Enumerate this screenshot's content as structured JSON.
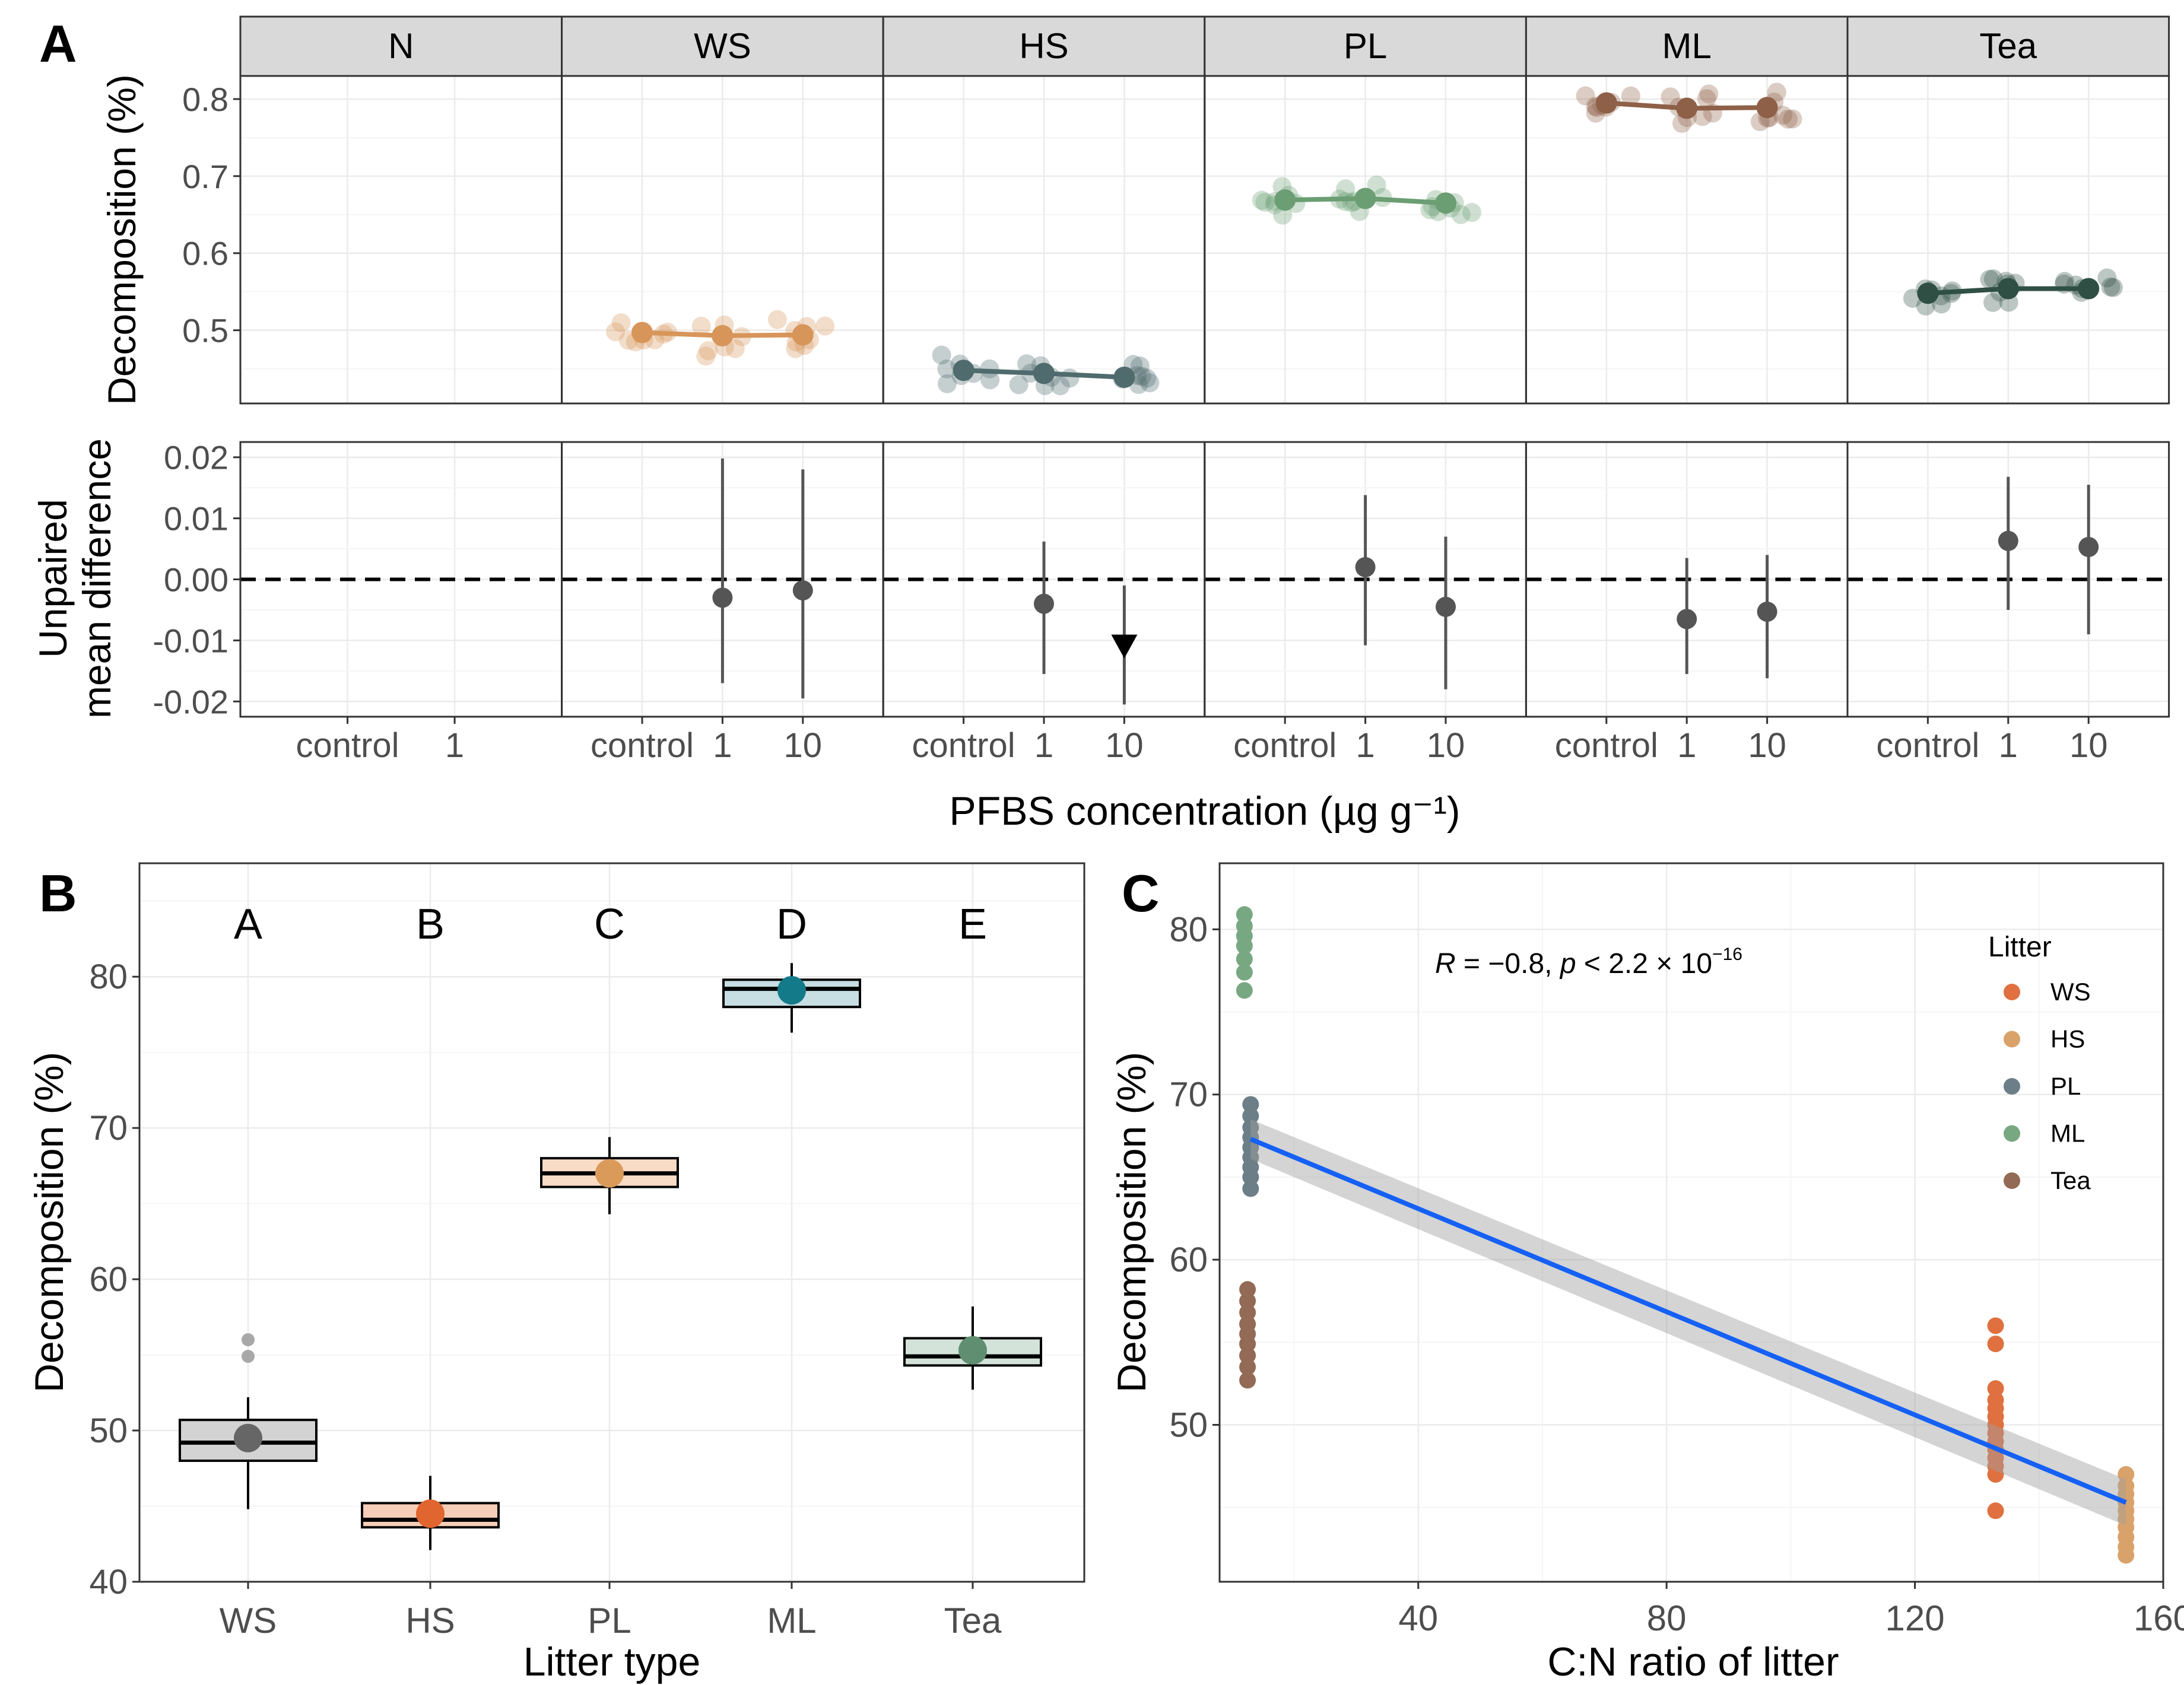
{
  "figure": {
    "panel_labels": [
      "A",
      "B",
      "C"
    ]
  },
  "chart_data": [
    {
      "id": "A-top",
      "type": "line",
      "ylabel": "Decomposition (%)",
      "ylim": [
        0.405,
        0.83
      ],
      "yticks": [
        0.5,
        0.6,
        0.7,
        0.8
      ],
      "ytick_labels": [
        "0.5",
        "0.6",
        "0.7",
        "0.8"
      ],
      "facets": [
        {
          "name": "N",
          "categories": [
            "control",
            "1"
          ],
          "means": [],
          "color": "#000000"
        },
        {
          "name": "WS",
          "categories": [
            "control",
            "1",
            "10"
          ],
          "means": [
            0.497,
            0.493,
            0.494
          ],
          "color": "#D8955A"
        },
        {
          "name": "HS",
          "categories": [
            "control",
            "1",
            "10"
          ],
          "means": [
            0.448,
            0.444,
            0.439
          ],
          "color": "#4F6B6E"
        },
        {
          "name": "PL",
          "categories": [
            "control",
            "1",
            "10"
          ],
          "means": [
            0.669,
            0.671,
            0.665
          ],
          "color": "#6B9E73"
        },
        {
          "name": "ML",
          "categories": [
            "control",
            "1",
            "10"
          ],
          "means": [
            0.795,
            0.788,
            0.789
          ],
          "color": "#8E6048"
        },
        {
          "name": "Tea",
          "categories": [
            "control",
            "1",
            "10"
          ],
          "means": [
            0.548,
            0.554,
            0.554
          ],
          "color": "#2F4F44"
        }
      ]
    },
    {
      "id": "A-bottom",
      "type": "scatter",
      "ylabel_lines": [
        "Unpaired",
        "mean difference"
      ],
      "xlabel": "PFBS concentration (µg g⁻¹)",
      "ylim": [
        -0.0225,
        0.0225
      ],
      "yticks": [
        -0.02,
        -0.01,
        0.0,
        0.01,
        0.02
      ],
      "ytick_labels": [
        "-0.02",
        "-0.01",
        "0.00",
        "0.01",
        "0.02"
      ],
      "facets": [
        {
          "name": "N",
          "points": []
        },
        {
          "name": "WS",
          "points": [
            {
              "x": "1",
              "mean": -0.003,
              "lo": -0.017,
              "hi": 0.0198
            },
            {
              "x": "10",
              "mean": -0.0018,
              "lo": -0.0195,
              "hi": 0.018
            }
          ]
        },
        {
          "name": "HS",
          "points": [
            {
              "x": "1",
              "mean": -0.004,
              "lo": -0.0155,
              "hi": 0.0062
            },
            {
              "x": "10",
              "mean": -0.011,
              "lo": -0.0205,
              "hi": -0.001,
              "marker": "triangle-down"
            }
          ]
        },
        {
          "name": "PL",
          "points": [
            {
              "x": "1",
              "mean": 0.002,
              "lo": -0.0108,
              "hi": 0.0138
            },
            {
              "x": "10",
              "mean": -0.0045,
              "lo": -0.018,
              "hi": 0.007
            }
          ]
        },
        {
          "name": "ML",
          "points": [
            {
              "x": "1",
              "mean": -0.0065,
              "lo": -0.0155,
              "hi": 0.0035
            },
            {
              "x": "10",
              "mean": -0.0053,
              "lo": -0.0162,
              "hi": 0.004
            }
          ]
        },
        {
          "name": "Tea",
          "points": [
            {
              "x": "1",
              "mean": 0.0063,
              "lo": -0.005,
              "hi": 0.0168
            },
            {
              "x": "10",
              "mean": 0.0053,
              "lo": -0.009,
              "hi": 0.0155
            }
          ]
        }
      ]
    },
    {
      "id": "B",
      "type": "box",
      "title": "",
      "xlabel": "Litter type",
      "ylabel": "Decomposition (%)",
      "ylim": [
        40,
        87.5
      ],
      "yticks": [
        40,
        50,
        60,
        70,
        80
      ],
      "ytick_labels": [
        "40",
        "50",
        "60",
        "70",
        "80"
      ],
      "categories": [
        "WS",
        "HS",
        "PL",
        "ML",
        "Tea"
      ],
      "letters": [
        "A",
        "B",
        "C",
        "D",
        "E"
      ],
      "boxes": [
        {
          "q1": 48.0,
          "median": 49.2,
          "q3": 50.7,
          "whisker_low": 44.8,
          "whisker_high": 52.2,
          "mean": 49.5,
          "outliers": [
            54.9,
            56.0
          ],
          "fill": "#D3D3D3",
          "point_color": "#666666"
        },
        {
          "q1": 43.6,
          "median": 44.1,
          "q3": 45.2,
          "whisker_low": 42.1,
          "whisker_high": 47.0,
          "mean": 44.5,
          "outliers": [],
          "fill": "#F6CDB8",
          "point_color": "#E0652E"
        },
        {
          "q1": 66.1,
          "median": 67.0,
          "q3": 68.0,
          "whisker_low": 64.3,
          "whisker_high": 69.4,
          "mean": 67.0,
          "outliers": [],
          "fill": "#F9DCC6",
          "point_color": "#D99A5A"
        },
        {
          "q1": 78.0,
          "median": 79.2,
          "q3": 79.8,
          "whisker_low": 76.3,
          "whisker_high": 80.9,
          "mean": 79.1,
          "outliers": [],
          "fill": "#C6DDE2",
          "point_color": "#137A8A"
        },
        {
          "q1": 54.3,
          "median": 54.9,
          "q3": 56.1,
          "whisker_low": 52.7,
          "whisker_high": 58.2,
          "mean": 55.3,
          "outliers": [],
          "fill": "#D4E3DA",
          "point_color": "#5F8F70"
        }
      ]
    },
    {
      "id": "C",
      "type": "scatter",
      "xlabel": "C:N ratio of litter",
      "ylabel": "Decomposition (%)",
      "xlim": [
        8,
        160
      ],
      "ylim": [
        40.5,
        84
      ],
      "xticks": [
        40,
        80,
        120,
        160
      ],
      "xtick_labels": [
        "40",
        "80",
        "120",
        "160"
      ],
      "yticks": [
        50,
        60,
        70,
        80
      ],
      "ytick_labels": [
        "50",
        "60",
        "70",
        "80"
      ],
      "annotation": {
        "r_label": "R",
        "r_value": " = −0.8, ",
        "p_label": "p",
        "p_value": " < 2.2 × 10",
        "p_exponent": "−16"
      },
      "legend": {
        "title": "Litter",
        "position": "top-right"
      },
      "series": [
        {
          "name": "WS",
          "color": "#E07040",
          "x": 133,
          "y": [
            44.8,
            47.0,
            47.5,
            48.0,
            48.5,
            49.0,
            49.5,
            50.0,
            50.5,
            51.0,
            51.5,
            52.2,
            54.9,
            56.0
          ]
        },
        {
          "name": "HS",
          "color": "#D9A26A",
          "x": 154,
          "y": [
            42.1,
            42.6,
            43.2,
            43.8,
            44.3,
            44.8,
            45.3,
            45.8,
            46.3,
            47.0
          ]
        },
        {
          "name": "PL",
          "color": "#6C7E87",
          "x": 13,
          "y": [
            64.3,
            65.0,
            65.6,
            66.2,
            66.8,
            67.4,
            68.0,
            68.7,
            69.4
          ]
        },
        {
          "name": "ML",
          "color": "#78A882",
          "x": 12,
          "y": [
            76.3,
            77.4,
            78.2,
            79.0,
            79.6,
            80.2,
            80.9
          ]
        },
        {
          "name": "Tea",
          "color": "#936A55",
          "x": 12.5,
          "y": [
            52.7,
            53.5,
            54.2,
            54.9,
            55.5,
            56.1,
            56.8,
            57.5,
            58.2
          ]
        }
      ],
      "fit": {
        "x": [
          13,
          154
        ],
        "y": [
          67.3,
          45.3
        ],
        "ci_lo": [
          66.1,
          43.9
        ],
        "ci_hi": [
          68.5,
          46.7
        ],
        "color": "#1560F5"
      }
    }
  ]
}
